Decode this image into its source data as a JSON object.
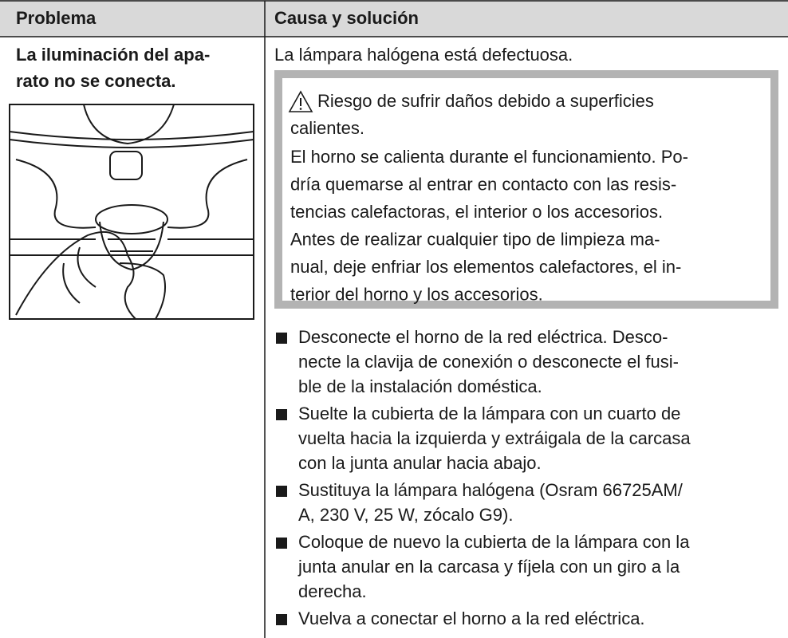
{
  "header": {
    "col1": "Problema",
    "col2": "Causa y solución"
  },
  "problem": {
    "lines": [
      "La iluminación del apa-",
      "rato no se conecta."
    ]
  },
  "cause": "La lámpara halógena está defectuosa.",
  "warning": {
    "title_lines": [
      "Riesgo de sufrir daños debido a superficies",
      "calientes."
    ],
    "body_lines": [
      "El horno se calienta durante el funcionamiento. Po-",
      "dría quemarse al entrar en contacto con las resis-",
      "tencias calefactoras, el interior o los accesorios.",
      "Antes de realizar cualquier tipo de limpieza ma-",
      "nual, deje enfriar los elementos calefactores, el in-",
      "terior del horno y los accesorios."
    ]
  },
  "steps": [
    {
      "lines": [
        "Desconecte el horno de la red eléctrica. Desco-",
        "necte la clavija de conexión o desconecte el fusi-",
        "ble de la instalación doméstica."
      ]
    },
    {
      "lines": [
        "Suelte la cubierta de la lámpara con un cuarto de",
        "vuelta hacia la izquierda y extráigala de la carcasa",
        "con la junta anular hacia abajo."
      ]
    },
    {
      "lines": [
        "Sustituya la lámpara halógena (Osram 66725AM/",
        "A, 230 V, 25 W, zócalo G9)."
      ]
    },
    {
      "lines": [
        "Coloque de nuevo la cubierta de la lámpara con la",
        "junta anular en la carcasa y fíjela con un giro a la",
        "derecha."
      ]
    },
    {
      "lines": [
        "Vuelva a conectar el horno a la red eléctrica."
      ]
    }
  ]
}
